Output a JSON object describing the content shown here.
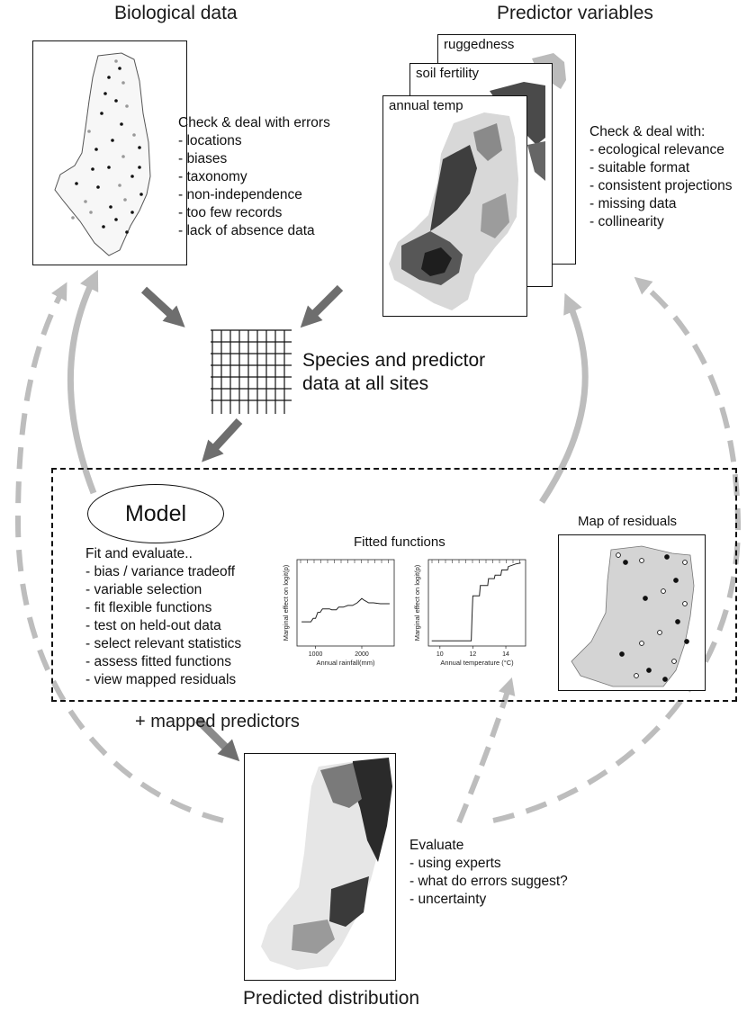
{
  "headings": {
    "biological": "Biological data",
    "predictor": "Predictor variables",
    "species": [
      "Species and predictor",
      "data at all sites"
    ],
    "predicted": "Predicted distribution",
    "mapped_predictors": "+ mapped predictors"
  },
  "biological_checks": {
    "title": "Check & deal with errors",
    "items": [
      "- locations",
      "- biases",
      "- taxonomy",
      "- non-independence",
      "- too few records",
      "- lack of absence data"
    ]
  },
  "predictor_checks": {
    "title": "Check & deal with:",
    "items": [
      "- ecological relevance",
      "- suitable format",
      "- consistent projections",
      "- missing data",
      "- collinearity"
    ]
  },
  "layers": [
    "ruggedness",
    "soil fertility",
    "annual temp"
  ],
  "model": {
    "label": "Model",
    "title": "Fit and evaluate..",
    "items": [
      "- bias / variance tradeoff",
      "- variable selection",
      "- fit flexible functions",
      "- test on held-out data",
      "- select relevant statistics",
      "- assess fitted functions",
      "- view mapped residuals"
    ],
    "fitted_title": "Fitted functions",
    "residuals_title": "Map of residuals"
  },
  "evaluate": {
    "title": "Evaluate",
    "items": [
      "- using experts",
      "- what do errors suggest?",
      "- uncertainty"
    ]
  },
  "chart_data": [
    {
      "type": "line",
      "title": "",
      "xlabel": "Annual rainfall(mm)",
      "ylabel": "Marginal effect on logit(p)",
      "xticks": [
        "1000",
        "2000"
      ],
      "xlim": [
        600,
        2700
      ],
      "ylim": [
        0,
        1
      ],
      "series": [
        {
          "x": [
            700,
            900,
            950,
            1000,
            1050,
            1100,
            1150,
            1300,
            1350,
            1450,
            1500,
            1600,
            1700,
            1800,
            1900,
            2000,
            2050,
            2150,
            2250,
            2400,
            2600
          ],
          "values": [
            0.28,
            0.28,
            0.32,
            0.32,
            0.39,
            0.39,
            0.43,
            0.43,
            0.42,
            0.42,
            0.45,
            0.45,
            0.47,
            0.47,
            0.5,
            0.55,
            0.53,
            0.5,
            0.5,
            0.49,
            0.49
          ]
        }
      ]
    },
    {
      "type": "line",
      "title": "",
      "xlabel": "Annual temperature (°C)",
      "ylabel": "Marginal effect on logit(p)",
      "xticks": [
        "10",
        "12",
        "14"
      ],
      "xlim": [
        9.3,
        15.2
      ],
      "ylim": [
        0,
        1
      ],
      "series": [
        {
          "x": [
            9.5,
            10,
            11,
            11.9,
            11.95,
            12.0,
            12.4,
            12.45,
            12.9,
            12.95,
            13.3,
            13.35,
            13.7,
            13.75,
            14.1,
            14.15,
            14.6,
            14.9
          ],
          "values": [
            0.06,
            0.06,
            0.06,
            0.06,
            0.35,
            0.58,
            0.58,
            0.7,
            0.7,
            0.78,
            0.78,
            0.82,
            0.82,
            0.88,
            0.88,
            0.92,
            0.95,
            0.96
          ]
        }
      ]
    }
  ]
}
